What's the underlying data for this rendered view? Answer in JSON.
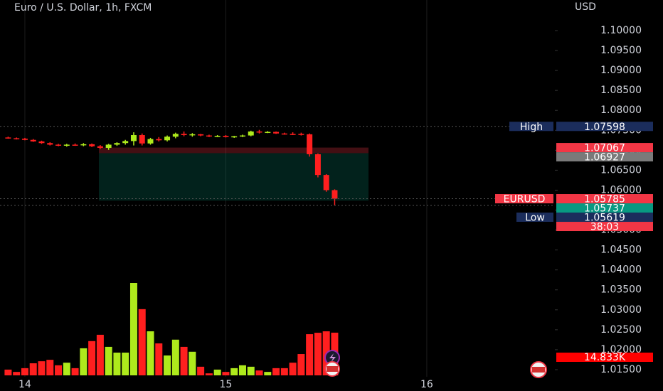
{
  "chart_data": {
    "type": "candlestick",
    "title": "Euro / U.S. Dollar, 1h, FXCM",
    "y_axis_label": "USD",
    "x": [
      -2,
      -1,
      0,
      1,
      2,
      3,
      4,
      5,
      6,
      7,
      8,
      9,
      10,
      11,
      12,
      13,
      14,
      15,
      16,
      17,
      18,
      19,
      20,
      21,
      22,
      23,
      24,
      25,
      26,
      27,
      28,
      29,
      30,
      31,
      32,
      33,
      34,
      35,
      36,
      37
    ],
    "open": [
      1.0732,
      1.073,
      1.0729,
      1.0726,
      1.0722,
      1.0718,
      1.0714,
      1.0712,
      1.0714,
      1.0713,
      1.0715,
      1.071,
      1.0706,
      1.0714,
      1.0718,
      1.0723,
      1.0738,
      1.0717,
      1.0728,
      1.0725,
      1.0734,
      1.0741,
      1.0738,
      1.074,
      1.0737,
      1.0735,
      1.0736,
      1.0733,
      1.0735,
      1.0737,
      1.0747,
      1.0745,
      1.0746,
      1.0742,
      1.0741,
      1.0741,
      1.074,
      1.069,
      1.0638,
      1.06
    ],
    "high": [
      1.0734,
      1.0732,
      1.0731,
      1.0728,
      1.0724,
      1.072,
      1.0716,
      1.0716,
      1.0717,
      1.0718,
      1.0717,
      1.0713,
      1.0716,
      1.072,
      1.0726,
      1.0745,
      1.0742,
      1.0731,
      1.0733,
      1.0737,
      1.0744,
      1.0747,
      1.0743,
      1.0741,
      1.0739,
      1.0738,
      1.0738,
      1.0736,
      1.0739,
      1.0749,
      1.0751,
      1.0748,
      1.0747,
      1.0744,
      1.0745,
      1.0744,
      1.0742,
      1.0692,
      1.064,
      1.0602
    ],
    "low": [
      1.0729,
      1.0727,
      1.0725,
      1.0721,
      1.0716,
      1.0712,
      1.071,
      1.0709,
      1.0711,
      1.071,
      1.0708,
      1.0703,
      1.0701,
      1.0711,
      1.0714,
      1.0712,
      1.0712,
      1.0714,
      1.0722,
      1.0722,
      1.073,
      1.0735,
      1.0734,
      1.0735,
      1.0733,
      1.0733,
      1.0732,
      1.0731,
      1.0733,
      1.0735,
      1.0742,
      1.0743,
      1.0741,
      1.0739,
      1.0738,
      1.0737,
      1.0684,
      1.0632,
      1.0596,
      1.05619
    ],
    "close": [
      1.073,
      1.0729,
      1.0726,
      1.0722,
      1.0718,
      1.0714,
      1.0712,
      1.0714,
      1.0713,
      1.0715,
      1.071,
      1.0706,
      1.0714,
      1.0718,
      1.0723,
      1.0738,
      1.0717,
      1.0728,
      1.0725,
      1.0734,
      1.0741,
      1.0738,
      1.074,
      1.0737,
      1.0735,
      1.0736,
      1.0733,
      1.0735,
      1.0737,
      1.0747,
      1.0745,
      1.0746,
      1.0742,
      1.0741,
      1.074,
      1.074,
      1.069,
      1.0638,
      1.06,
      1.05785
    ],
    "volume": [
      2000,
      1200,
      2500,
      4200,
      4900,
      5400,
      3500,
      4400,
      2500,
      9400,
      11900,
      14100,
      9900,
      7900,
      7900,
      32100,
      23000,
      15300,
      11100,
      6900,
      12400,
      9900,
      8200,
      3000,
      700,
      2000,
      1200,
      2500,
      3500,
      3000,
      1700,
      1200,
      2500,
      2500,
      4400,
      7400,
      14300,
      14800,
      15300,
      14833
    ],
    "volume_label": {
      "value": 14833,
      "label": "14.833K"
    },
    "up_color": "#aeea1c",
    "down_color": "#ff1f1f",
    "xlim": [
      -2.97,
      63.3
    ],
    "xticks": [
      {
        "value": 0,
        "label": "14"
      },
      {
        "value": 24,
        "label": "15"
      },
      {
        "value": 48,
        "label": "16"
      }
    ],
    "ylim": [
      1.00965,
      1.10766
    ],
    "yticks": [
      {
        "value": 1.015,
        "label": "1.01500"
      },
      {
        "value": 1.02,
        "label": "1.02000"
      },
      {
        "value": 1.025,
        "label": "1.02500"
      },
      {
        "value": 1.03,
        "label": "1.03000"
      },
      {
        "value": 1.035,
        "label": "1.03500"
      },
      {
        "value": 1.04,
        "label": "1.04000"
      },
      {
        "value": 1.045,
        "label": "1.04500"
      },
      {
        "value": 1.05,
        "label": "1.05000"
      },
      {
        "value": 1.055,
        "label": "1.05500"
      },
      {
        "value": 1.06,
        "label": "1.06000"
      },
      {
        "value": 1.065,
        "label": "1.06500"
      },
      {
        "value": 1.07,
        "label": "1.07000"
      },
      {
        "value": 1.075,
        "label": "1.07500"
      },
      {
        "value": 1.08,
        "label": "1.08000"
      },
      {
        "value": 1.085,
        "label": "1.08500"
      },
      {
        "value": 1.09,
        "label": "1.09000"
      },
      {
        "value": 1.095,
        "label": "1.09500"
      },
      {
        "value": 1.1,
        "label": "1.10000"
      }
    ],
    "grid": "x",
    "price_labels": [
      {
        "name": "High",
        "value": 1.07598,
        "color": "#1b2d5c"
      },
      {
        "value": 1.07067,
        "color": "#f23645"
      },
      {
        "value": 1.06927,
        "color": "#7a7a7a"
      },
      {
        "name": "EURUSD",
        "value": 1.05785,
        "countdown": "38:03",
        "color": "#f23645"
      },
      {
        "value": 1.05737,
        "color": "#089981"
      },
      {
        "name": "Low",
        "value": 1.05619,
        "color": "#1b2d5c"
      }
    ]
  }
}
